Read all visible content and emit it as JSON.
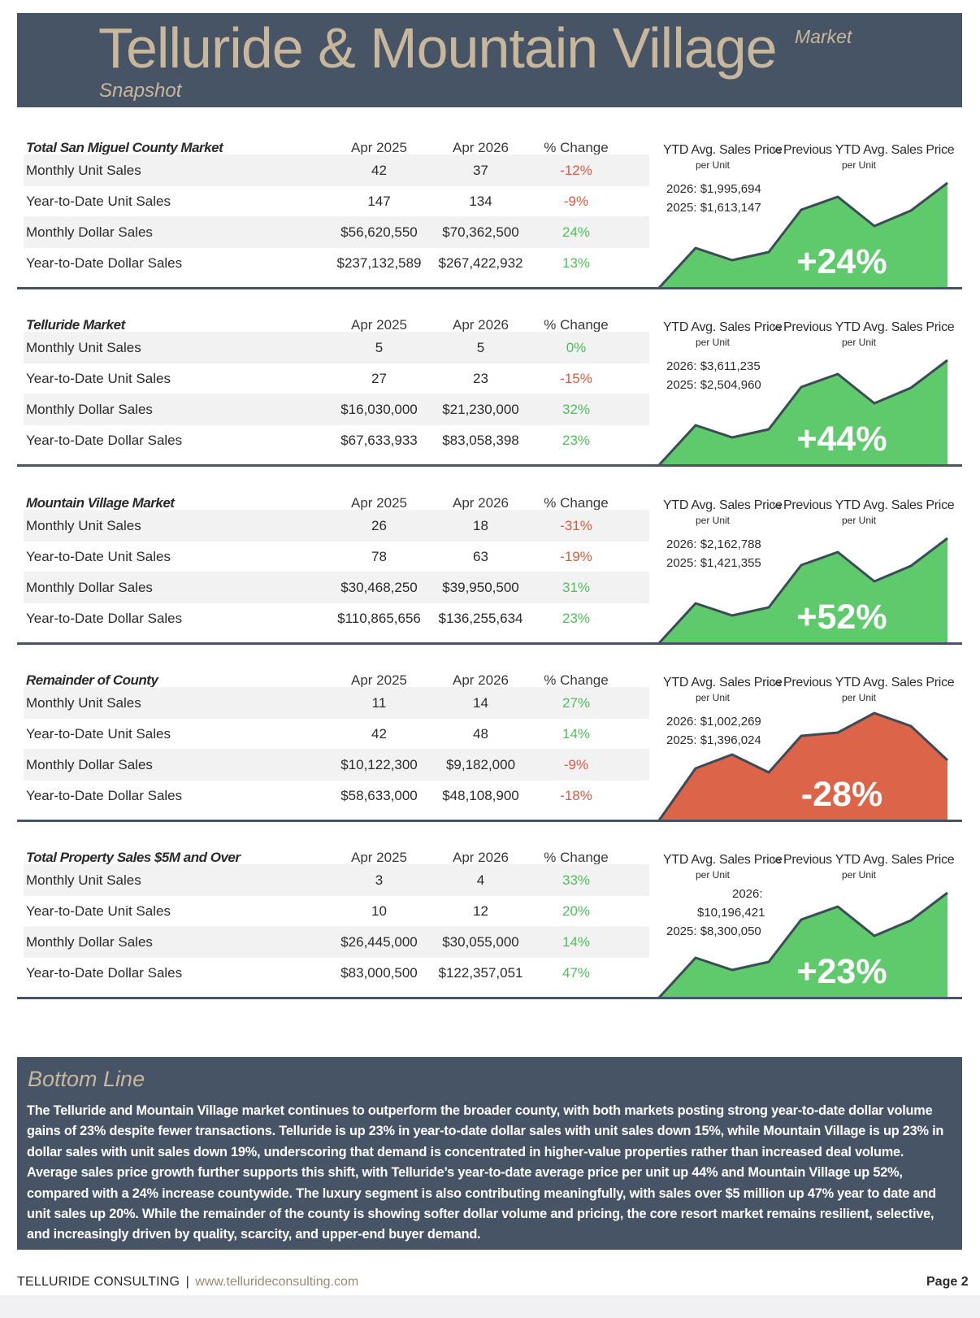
{
  "header": {
    "title": "Telluride & Mountain Village",
    "market": "Market",
    "snapshot": "Snapshot"
  },
  "colors": {
    "header_bg": "#465465",
    "gold": "#c9b79c",
    "green": "#5fca6b",
    "red": "#db6449",
    "pos_text": "#4fbf5a",
    "neg_text": "#e0583e"
  },
  "columns": {
    "a": "Apr 2025",
    "b": "Apr 2026",
    "p": "% Change"
  },
  "chart_labels": {
    "left": "YTD Avg. Sales Price",
    "vs": "vs",
    "right": "Previous YTD Avg. Sales Price",
    "per_unit": "per Unit"
  },
  "sections": [
    {
      "title": "Total San Miguel County Market",
      "rows": [
        {
          "label": "Monthly Unit Sales",
          "a": "42",
          "b": "37",
          "p": "-12%",
          "dir": "neg"
        },
        {
          "label": "Year-to-Date Unit Sales",
          "a": "147",
          "b": "134",
          "p": "-9%",
          "dir": "neg"
        },
        {
          "label": "Monthly Dollar Sales",
          "a": "$56,620,550",
          "b": "$70,362,500",
          "p": "24%",
          "dir": "pos"
        },
        {
          "label": "Year-to-Date Dollar Sales",
          "a": "$237,132,589",
          "b": "$267,422,932",
          "p": "13%",
          "dir": "pos"
        }
      ],
      "chart": {
        "y2026": "2026: $1,995,694",
        "y2025": "2025: $1,613,147",
        "pct": "+24%",
        "dir": "pos"
      }
    },
    {
      "title": "Telluride Market",
      "rows": [
        {
          "label": "Monthly Unit Sales",
          "a": "5",
          "b": "5",
          "p": "0%",
          "dir": "pos"
        },
        {
          "label": "Year-to-Date Unit Sales",
          "a": "27",
          "b": "23",
          "p": "-15%",
          "dir": "neg"
        },
        {
          "label": "Monthly Dollar Sales",
          "a": "$16,030,000",
          "b": "$21,230,000",
          "p": "32%",
          "dir": "pos"
        },
        {
          "label": "Year-to-Date Dollar Sales",
          "a": "$67,633,933",
          "b": "$83,058,398",
          "p": "23%",
          "dir": "pos"
        }
      ],
      "chart": {
        "y2026": "2026: $3,611,235",
        "y2025": "2025: $2,504,960",
        "pct": "+44%",
        "dir": "pos"
      }
    },
    {
      "title": "Mountain Village Market",
      "rows": [
        {
          "label": "Monthly Unit Sales",
          "a": "26",
          "b": "18",
          "p": "-31%",
          "dir": "neg"
        },
        {
          "label": "Year-to-Date Unit Sales",
          "a": "78",
          "b": "63",
          "p": "-19%",
          "dir": "neg"
        },
        {
          "label": "Monthly Dollar Sales",
          "a": "$30,468,250",
          "b": "$39,950,500",
          "p": "31%",
          "dir": "pos"
        },
        {
          "label": "Year-to-Date Dollar Sales",
          "a": "$110,865,656",
          "b": "$136,255,634",
          "p": "23%",
          "dir": "pos"
        }
      ],
      "chart": {
        "y2026": "2026: $2,162,788",
        "y2025": "2025: $1,421,355",
        "pct": "+52%",
        "dir": "pos"
      }
    },
    {
      "title": "Remainder of County",
      "rows": [
        {
          "label": "Monthly Unit Sales",
          "a": "11",
          "b": "14",
          "p": "27%",
          "dir": "pos"
        },
        {
          "label": "Year-to-Date Unit Sales",
          "a": "42",
          "b": "48",
          "p": "14%",
          "dir": "pos"
        },
        {
          "label": "Monthly Dollar Sales",
          "a": "$10,122,300",
          "b": "$9,182,000",
          "p": "-9%",
          "dir": "neg"
        },
        {
          "label": "Year-to-Date Dollar Sales",
          "a": "$58,633,000",
          "b": "$48,108,900",
          "p": "-18%",
          "dir": "neg"
        }
      ],
      "chart": {
        "y2026": "2026: $1,002,269",
        "y2025": "2025: $1,396,024",
        "pct": "-28%",
        "dir": "neg"
      }
    },
    {
      "title": "Total Property Sales $5M and Over",
      "rows": [
        {
          "label": "Monthly Unit Sales",
          "a": "3",
          "b": "4",
          "p": "33%",
          "dir": "pos"
        },
        {
          "label": "Year-to-Date Unit Sales",
          "a": "10",
          "b": "12",
          "p": "20%",
          "dir": "pos"
        },
        {
          "label": "Monthly Dollar Sales",
          "a": "$26,445,000",
          "b": "$30,055,000",
          "p": "14%",
          "dir": "pos"
        },
        {
          "label": "Year-to-Date Dollar Sales",
          "a": "$83,000,500",
          "b": "$122,357,051",
          "p": "47%",
          "dir": "pos"
        }
      ],
      "chart": {
        "y2026_a": "2026:",
        "y2026_b": "$10,196,421",
        "y2025": "2025: $8,300,050",
        "pct": "+23%",
        "dir": "pos"
      }
    }
  ],
  "bottom_line": {
    "title": "Bottom Line",
    "text": "The Telluride and Mountain Village market continues to outperform the broader county, with both markets posting strong year-to-date dollar volume gains of 23% despite fewer transactions. Telluride is up 23% in year-to-date dollar sales with unit sales down 15%, while Mountain Village is up 23% in dollar sales with unit sales down 19%, underscoring that demand is concentrated in higher-value properties rather than increased deal volume. Average sales price growth further supports this shift, with Telluride’s year-to-date average price per unit up 44% and Mountain Village up 52%, compared with a 24% increase countywide. The luxury segment is also contributing meaningfully, with sales over $5 million up 47% year to date and unit sales up 20%. While the remainder of the county is showing softer dollar volume and pricing, the core resort market remains resilient, selective, and increasingly driven by quality, scarcity, and upper-end buyer demand."
  },
  "footer": {
    "brand": "TELLURIDE CONSULTING",
    "separator": "|",
    "url": "www.tellurideconsulting.com",
    "page": "Page 2"
  }
}
